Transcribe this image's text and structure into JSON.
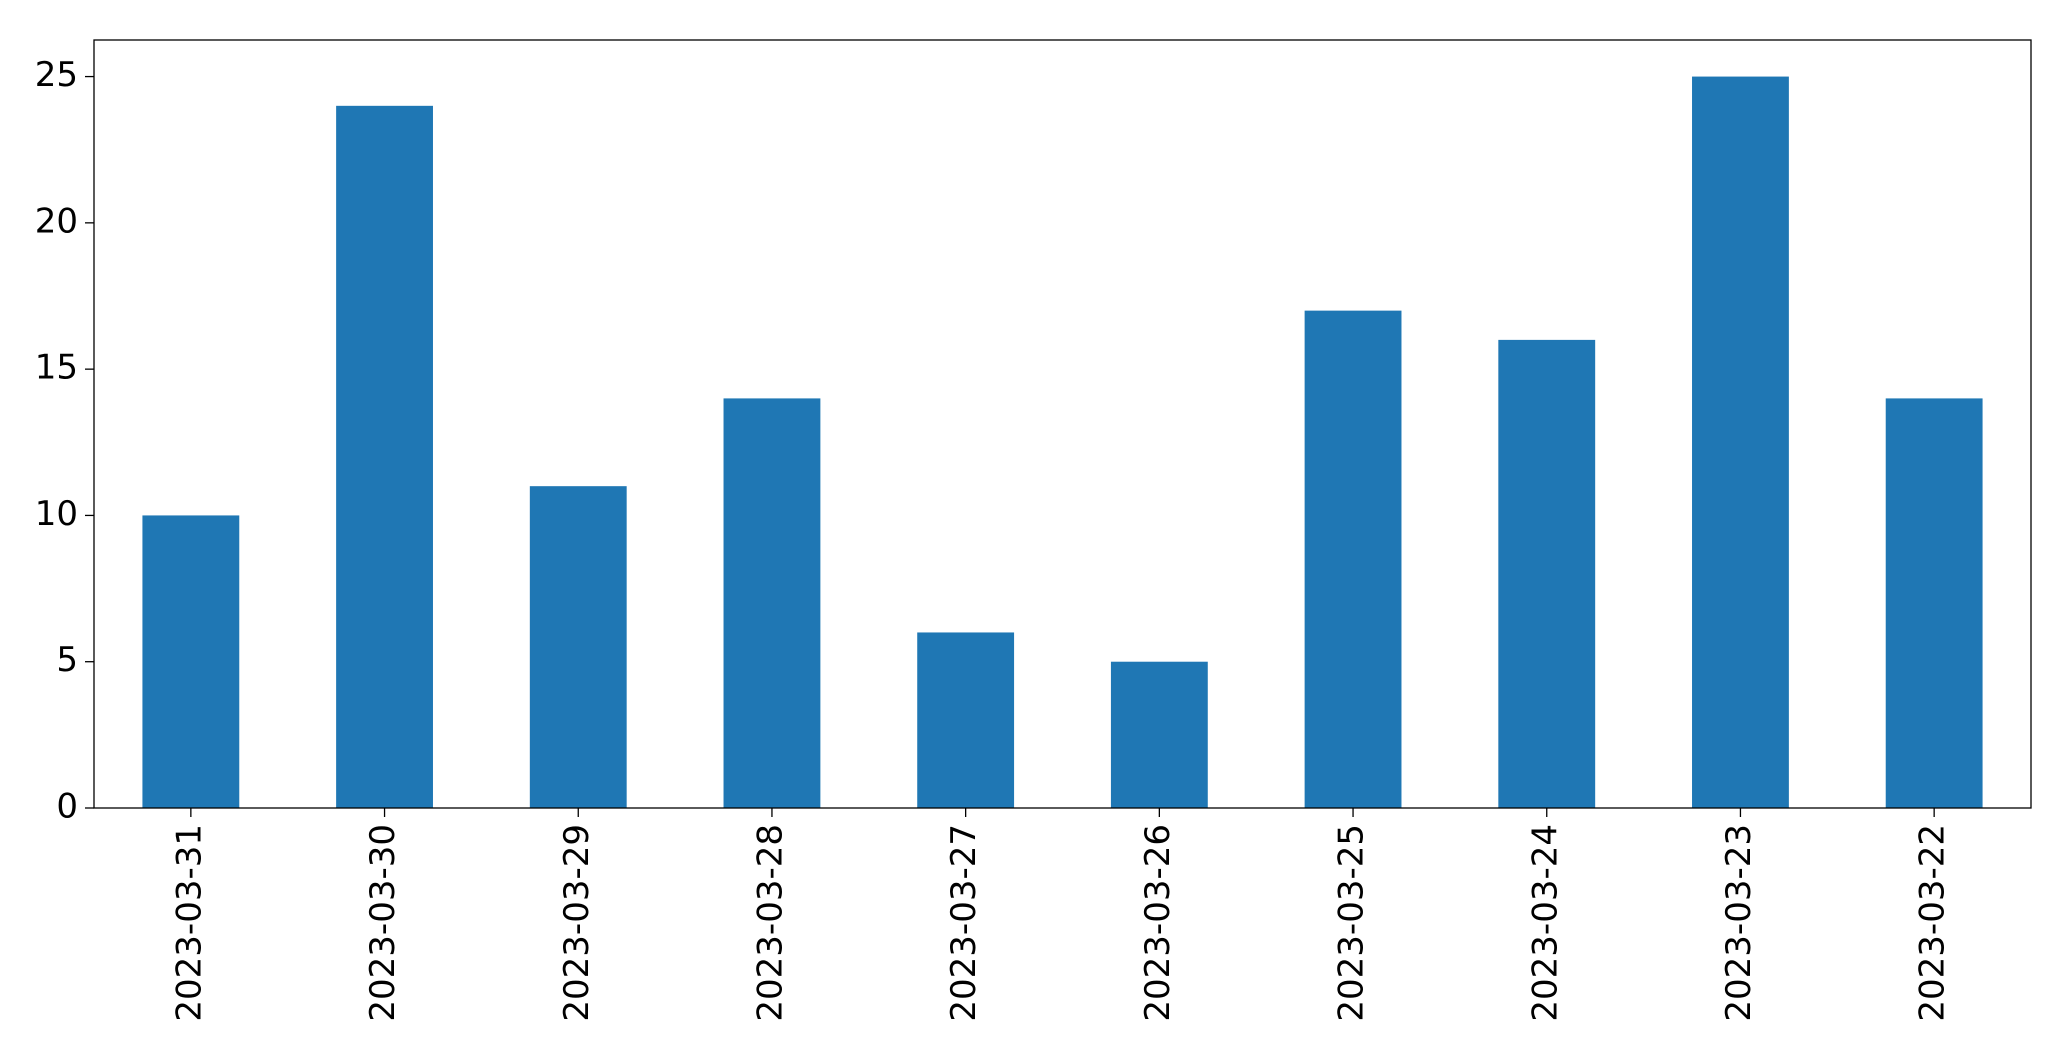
{
  "chart_data": {
    "type": "bar",
    "categories": [
      "2023-03-31",
      "2023-03-30",
      "2023-03-29",
      "2023-03-28",
      "2023-03-27",
      "2023-03-26",
      "2023-03-25",
      "2023-03-24",
      "2023-03-23",
      "2023-03-22"
    ],
    "values": [
      10,
      24,
      11,
      14,
      6,
      5,
      17,
      16,
      25,
      14
    ],
    "color": "#1f77b4",
    "ylim": [
      0,
      26.25
    ],
    "yticks": [
      0,
      5,
      10,
      15,
      20,
      25
    ],
    "grid": false
  }
}
